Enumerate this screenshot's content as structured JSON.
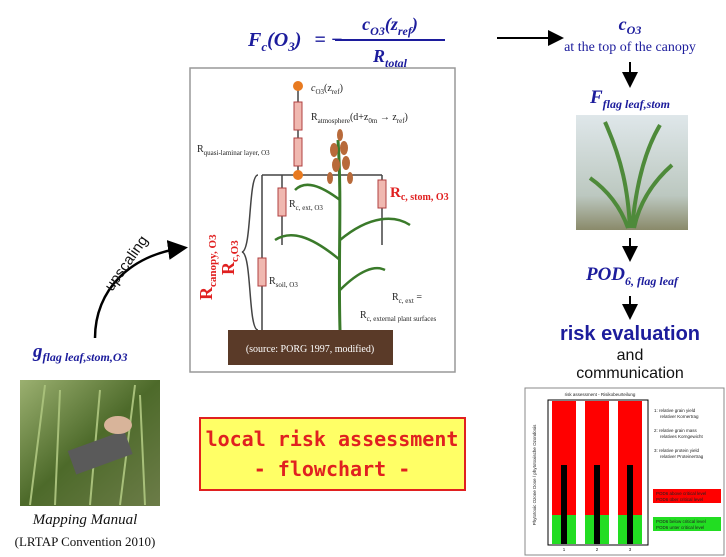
{
  "formula": {
    "lhs": "F",
    "lhs_sub": "c",
    "lhs_arg": "(O",
    "lhs_arg_sub": "3",
    "lhs_close": ")",
    "equals": "= −",
    "num": "c",
    "num_sub": "O3",
    "num_arg": "(z",
    "num_arg_sub": "ref",
    "num_close": ")",
    "den": "R",
    "den_sub": "total"
  },
  "right_column": {
    "c": "c",
    "c_sub": "O3",
    "canopy_top": "at the top of the canopy",
    "flux": "F",
    "flux_sub": "flag leaf,stom",
    "pod": "POD",
    "pod_sub": "6, flag leaf",
    "risk_evaluation": "risk evaluation",
    "and": "and",
    "communication": "communication"
  },
  "left_column": {
    "g": "g",
    "g_sub": "flag leaf,stom,O3",
    "upscaling": "upscaling",
    "manual": "Mapping Manual",
    "manual_source": "(LRTAP Convention 2010)"
  },
  "flowchart_box": {
    "line1": "local risk assessment",
    "line2": "- flowchart -"
  },
  "resistance_diagram": {
    "c": "c",
    "c_sub": "O3",
    "c_arg": "(z",
    "c_arg_sub": "ref",
    "c_close": ")",
    "r_atm": "R",
    "r_atm_sub": "atmosphere",
    "r_atm_arg": "(d+z",
    "r_atm_arg_sub": "0m",
    "r_atm_arrow": " → z",
    "r_atm_arrow_sub": "ref",
    "r_atm_close": ")",
    "r_ql": "R",
    "r_ql_sub": "quasi-laminar layer, O3",
    "r_ext": "R",
    "r_ext_sub": "c, ext, O3",
    "r_stom": "R",
    "r_stom_sub": "c, stom, O3",
    "r_canopy": "R",
    "r_canopy_sub": "canopy, O3",
    "r_c": "R",
    "r_c_sub": "c,O3",
    "r_soil": "R",
    "r_soil_sub": "soil, O3",
    "r_cext": "R",
    "r_cext_sub": "c, ext",
    "r_cext_eq": " =",
    "r_cext2": "R",
    "r_cext2_sub": "c, external plant surfaces",
    "source": "(source: PORG 1997, modified)"
  },
  "risk_chart": {
    "title": "risk assessment - Risikobeurteilung",
    "y_label": "Phytotoxic Ozone Dose / phytotoxische Ozondosis",
    "categories": [
      "1",
      "2",
      "3"
    ],
    "legend": [
      "1: relative grain yield",
      "relativer Kornertrag",
      "2: relative grain mass",
      "relatives Korngewicht",
      "3: relative protein yield",
      "relativer Proteinertrag"
    ],
    "red_legend": [
      "POD6 above critical level",
      "POD6 über critical level"
    ],
    "green_legend": [
      "POD6 below critical level",
      "POD6 unter critical level"
    ]
  }
}
